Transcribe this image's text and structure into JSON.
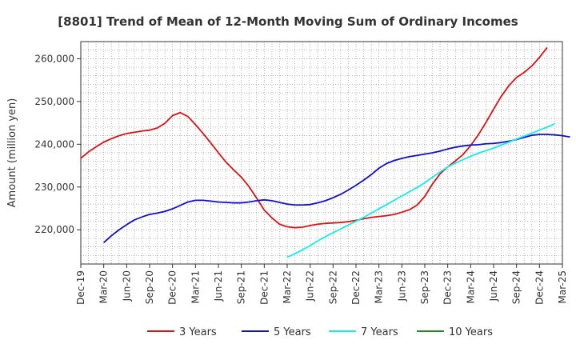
{
  "chart_data": {
    "type": "line",
    "title": "[8801]  Trend of Mean of 12-Month Moving Sum of Ordinary Incomes",
    "xlabel": "",
    "ylabel": "Amount (million yen)",
    "ylim": [
      212000,
      264000
    ],
    "y_ticks": [
      220000,
      230000,
      240000,
      250000,
      260000
    ],
    "y_tick_labels": [
      "220,000",
      "230,000",
      "240,000",
      "250,000",
      "260,000"
    ],
    "x_tick_labels": [
      "Dec-19",
      "Mar-20",
      "Jun-20",
      "Sep-20",
      "Dec-20",
      "Mar-21",
      "Jun-21",
      "Sep-21",
      "Dec-21",
      "Mar-22",
      "Jun-22",
      "Sep-22",
      "Dec-22",
      "Mar-23",
      "Jun-23",
      "Sep-23",
      "Dec-23",
      "Mar-24",
      "Jun-24",
      "Sep-24",
      "Dec-24",
      "Mar-25"
    ],
    "x_range_months": [
      0,
      63
    ],
    "grid": true,
    "legend_position": "bottom",
    "series": [
      {
        "name": "3 Years",
        "color": "#dd1111",
        "start_month": 0,
        "values": [
          236700,
          238200,
          239400,
          240500,
          241300,
          242000,
          242500,
          242800,
          243100,
          243300,
          243800,
          244900,
          246700,
          247400,
          246500,
          244600,
          242500,
          240300,
          238000,
          235800,
          234000,
          232300,
          230100,
          227400,
          224600,
          222800,
          221300,
          220700,
          220500,
          220600,
          221000,
          221300,
          221500,
          221600,
          221700,
          221900,
          222200,
          222600,
          222900,
          223100,
          223300,
          223600,
          224100,
          224700,
          225800,
          227800,
          230700,
          233100,
          234700,
          236100,
          237600,
          239700,
          242200,
          245100,
          248200,
          251200,
          253700,
          255600,
          256800,
          258300,
          260300,
          262600
        ]
      },
      {
        "name": "5 Years",
        "color": "#1111cc",
        "start_month": 3,
        "values": [
          217000,
          218600,
          220000,
          221200,
          222300,
          223000,
          223600,
          223900,
          224300,
          224900,
          225700,
          226500,
          226900,
          226900,
          226700,
          226500,
          226400,
          226300,
          226300,
          226500,
          226800,
          227000,
          226800,
          226400,
          226000,
          225800,
          225800,
          225900,
          226300,
          226800,
          227500,
          228300,
          229300,
          230400,
          231600,
          232900,
          234400,
          235500,
          236200,
          236700,
          237100,
          237400,
          237700,
          238000,
          238400,
          238900,
          239300,
          239600,
          239800,
          239900,
          240100,
          240200,
          240400,
          240700,
          241100,
          241600,
          242100,
          242300,
          242300,
          242200,
          242000,
          241700
        ]
      },
      {
        "name": "7 Years",
        "color": "#11eeee",
        "start_month": 27,
        "values": [
          213600,
          214400,
          215300,
          216300,
          217400,
          218400,
          219300,
          220200,
          221100,
          222000,
          222900,
          223900,
          224900,
          225900,
          226900,
          227900,
          228900,
          229900,
          231000,
          232300,
          233500,
          234700,
          235600,
          236400,
          237200,
          237900,
          238500,
          239100,
          239800,
          240500,
          241200,
          241900,
          242600,
          243300,
          244000,
          244800
        ]
      },
      {
        "name": "10 Years",
        "color": "#228822",
        "start_month": 0,
        "values": []
      }
    ]
  }
}
